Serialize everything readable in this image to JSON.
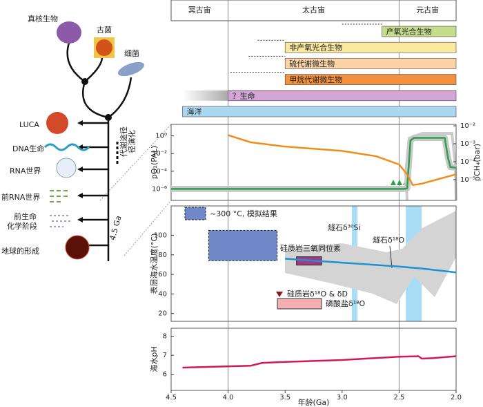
{
  "eons": [
    {
      "name": "冥古宙",
      "start": 4.5,
      "end": 4.0
    },
    {
      "name": "太古宙",
      "start": 4.0,
      "end": 2.5
    },
    {
      "name": "元古宙",
      "start": 2.5,
      "end": 2.0
    }
  ],
  "timeline": [
    {
      "label": "产氧光合生物",
      "start": 2.65,
      "end": 2.0,
      "dotted_start": 3.0,
      "color": "#c5dc8c"
    },
    {
      "label": "非产氧光合生物",
      "start": 3.5,
      "end": 2.0,
      "dotted_start": 3.74,
      "color": "#fbe9a0"
    },
    {
      "label": "硫代谢微生物",
      "start": 3.5,
      "end": 2.0,
      "dotted_start": 3.82,
      "color": "#fbd3a6"
    },
    {
      "label": "甲烷代谢微生物",
      "start": 3.5,
      "end": 2.0,
      "dotted_start": 3.98,
      "color": "#f2913f"
    },
    {
      "label": "？生命",
      "start": 4.0,
      "end": 2.0,
      "fade_start": 4.4,
      "color": "#d3a6d6"
    },
    {
      "label": "海洋",
      "start": 4.4,
      "end": 2.0,
      "color": "#a9d8f0"
    }
  ],
  "tree": {
    "eukaryote": "真核生物",
    "archaea": "古菌",
    "bacteria": "细菌",
    "luca": "LUCA",
    "dna": "DNA生命",
    "rna": "RNA世界",
    "prerna": "前RNA世界",
    "prebiotic_1": "前生命",
    "prebiotic_2": "化学阶段",
    "formation": "地球的形成",
    "metabolism_1": "代谢途径",
    "metabolism_2": "径演化",
    "age": "4.5 Ga"
  },
  "chart_data": [
    {
      "type": "line",
      "ylabel": "pO₂(PAL)",
      "y2label": "pCH₄(bar)",
      "log_scale": true,
      "xlim": [
        4.5,
        2.0
      ],
      "ylim": [
        5e-08,
        20
      ],
      "yticks": [
        {
          "value": 1,
          "label": "10⁰"
        },
        {
          "value": 0.01,
          "label": "10⁻²"
        },
        {
          "value": 0.0001,
          "label": "10⁻⁴"
        },
        {
          "value": 1e-06,
          "label": "10⁻⁶"
        }
      ],
      "y2lim": [
        7e-07,
        0.012
      ],
      "y2ticks": [
        {
          "value": 0.01,
          "label": "10⁻²"
        },
        {
          "value": 0.001,
          "label": "10⁻³"
        },
        {
          "value": 0.0001,
          "label": "10⁻⁴"
        },
        {
          "value": 1e-05,
          "label": "10⁻⁵"
        }
      ],
      "series": [
        {
          "color": "#2e9e4a",
          "x": [
            4.5,
            2.46,
            2.43,
            2.4,
            2.37,
            2.32,
            2.1,
            2.07,
            2.05,
            2.0
          ],
          "values": [
            1e-06,
            1e-06,
            1.1e-06,
            0.3,
            0.6,
            0.6,
            0.6,
            0.003,
            0.0003,
            0.00025
          ]
        },
        {
          "color": "#f08c1a",
          "axis": "y2",
          "x": [
            4.0,
            3.8,
            3.5,
            3.0,
            2.7,
            2.5,
            2.43,
            2.38,
            2.3,
            2.0
          ],
          "values": [
            0.003,
            0.0012,
            0.0007,
            0.0004,
            0.0002,
            7e-05,
            2e-05,
            5e-06,
            6e-06,
            2e-05
          ]
        }
      ]
    },
    {
      "type": "line",
      "ylabel": "表层海水温度(°C)",
      "xlim": [
        4.5,
        2.0
      ],
      "ylim": [
        12,
        130
      ],
      "yticks": [
        100,
        80,
        60,
        40,
        20
      ],
      "series": [
        {
          "color": "#1f8fd6",
          "x": [
            3.5,
            3.0,
            2.5,
            2.3,
            2.0
          ],
          "values": [
            76,
            72,
            68,
            66,
            62
          ]
        }
      ],
      "boxes": [
        {
          "label": "~300 °C, 模拟结果",
          "x": [
            4.17,
            3.57
          ],
          "y": [
            74,
            105
          ],
          "color": "#6f88c8"
        },
        {
          "label": "硅质岩三氧同位素",
          "x": [
            3.4,
            3.18
          ],
          "y": [
            69.5,
            78
          ],
          "color": "#a63a7e"
        }
      ],
      "annotations": {
        "si": "燧石δ³⁰Si",
        "o": "燧石δ¹⁸O",
        "chert": "硅质岩δ¹⁸O & δD",
        "phosphate": "磷酸盐δ¹⁸O"
      }
    },
    {
      "type": "line",
      "ylabel": "海水pH",
      "xlabel": "年龄(Ga)",
      "xlim": [
        4.5,
        2.0
      ],
      "ylim": [
        5.15,
        8.42
      ],
      "yticks": [
        8,
        7,
        6
      ],
      "xticks": [
        {
          "value": 4.5,
          "label": "4.5"
        },
        {
          "value": 4.0,
          "label": "4.0"
        },
        {
          "value": 3.5,
          "label": "3.5"
        },
        {
          "value": 3.0,
          "label": "3.0"
        },
        {
          "value": 2.5,
          "label": "2.5"
        },
        {
          "value": 2.0,
          "label": "2.0"
        }
      ],
      "series": [
        {
          "color": "#d0185a",
          "x": [
            4.4,
            4.1,
            3.8,
            3.7,
            3.5,
            3.0,
            2.5,
            2.33,
            2.3,
            2.2,
            2.0
          ],
          "values": [
            6.35,
            6.4,
            6.45,
            6.6,
            6.65,
            6.75,
            6.92,
            6.95,
            6.82,
            6.85,
            6.95
          ]
        }
      ]
    }
  ]
}
